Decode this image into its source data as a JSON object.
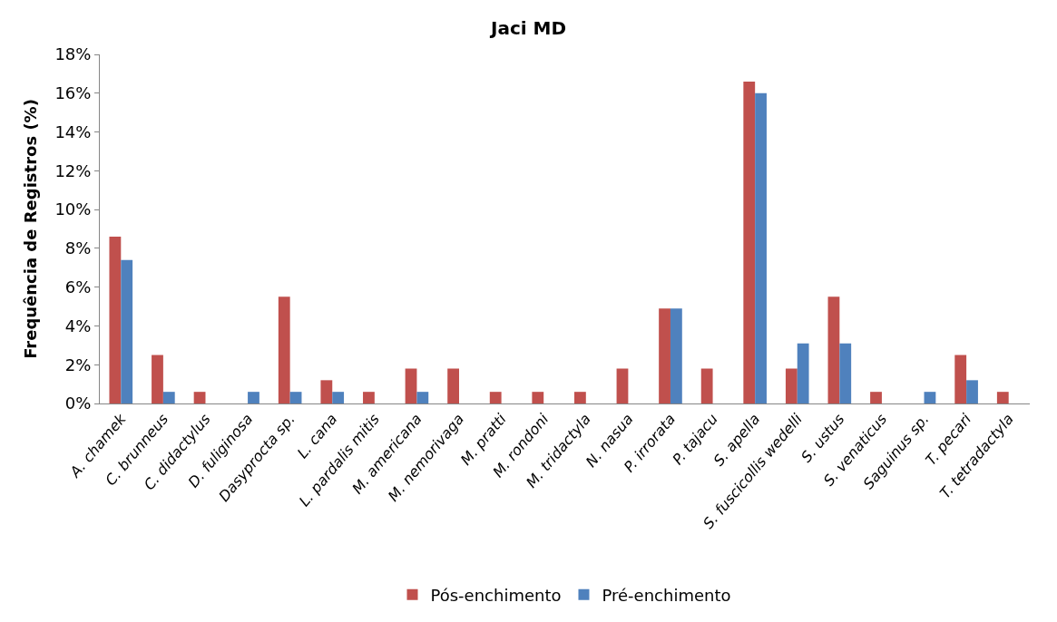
{
  "chart_data": {
    "type": "bar",
    "title": "Jaci MD",
    "ylabel": "Frequência de Registros (%)",
    "categories": [
      "A. chamek",
      "C. brunneus",
      "C. didactylus",
      "D. fuliginosa",
      "Dasyprocta sp.",
      "L. cana",
      "L. pardalis mitis",
      "M. americana",
      "M. nemorivaga",
      "M. pratti",
      "M. rondoni",
      "M. tridactyla",
      "N. nasua",
      "P. irrorata",
      "P. tajacu",
      "S. apella",
      "S. fuscicollis wedelli",
      "S. ustus",
      "S. venaticus",
      "Saguinus sp.",
      "T. pecari",
      "T. tetradactyla"
    ],
    "series": [
      {
        "name": "Pós-enchimento",
        "color": "#c0504d",
        "values": [
          8.6,
          2.5,
          0.6,
          0,
          5.5,
          1.2,
          0.6,
          1.8,
          1.8,
          0.6,
          0.6,
          0.6,
          1.8,
          4.9,
          1.8,
          16.6,
          1.8,
          5.5,
          0.6,
          0,
          2.5,
          0.6
        ]
      },
      {
        "name": "Pré-enchimento",
        "color": "#4f81bd",
        "values": [
          7.4,
          0.6,
          0,
          0.6,
          0.6,
          0.6,
          0,
          0.6,
          0,
          0,
          0,
          0,
          0,
          4.9,
          0,
          16.0,
          3.1,
          3.1,
          0,
          0.6,
          1.2,
          0
        ]
      }
    ],
    "ylim": [
      0,
      18
    ],
    "yticks": [
      {
        "value": 0,
        "label": "0%"
      },
      {
        "value": 2,
        "label": "2%"
      },
      {
        "value": 4,
        "label": "4%"
      },
      {
        "value": 6,
        "label": "6%"
      },
      {
        "value": 8,
        "label": "8%"
      },
      {
        "value": 10,
        "label": "10%"
      },
      {
        "value": 12,
        "label": "12%"
      },
      {
        "value": 14,
        "label": "14%"
      },
      {
        "value": 16,
        "label": "16%"
      },
      {
        "value": 18,
        "label": "18%"
      }
    ],
    "grid": false,
    "legend": "bottom"
  }
}
